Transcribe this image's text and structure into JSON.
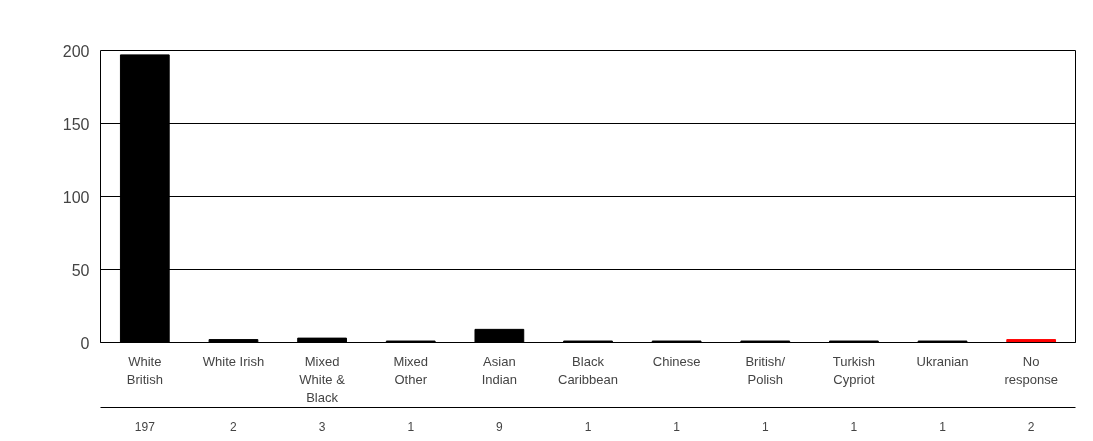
{
  "chart_data": {
    "type": "bar",
    "categories": [
      "White\nBritish",
      "White Irish",
      "Mixed\nWhite &\nBlack",
      "Mixed\nOther",
      "Asian\nIndian",
      "Black\nCaribbean",
      "Chinese",
      "British/\nPolish",
      "Turkish\nCypriot",
      "Ukranian",
      "No\nresponse"
    ],
    "values": [
      197,
      2,
      3,
      1,
      9,
      1,
      1,
      1,
      1,
      1,
      2
    ],
    "colors": [
      "#000000",
      "#000000",
      "#000000",
      "#000000",
      "#000000",
      "#000000",
      "#000000",
      "#000000",
      "#000000",
      "#000000",
      "#ff0000"
    ],
    "ylim": [
      0,
      200
    ],
    "yticks": [
      0,
      50,
      100,
      150,
      200
    ],
    "grid": "y",
    "data_labels": true
  }
}
